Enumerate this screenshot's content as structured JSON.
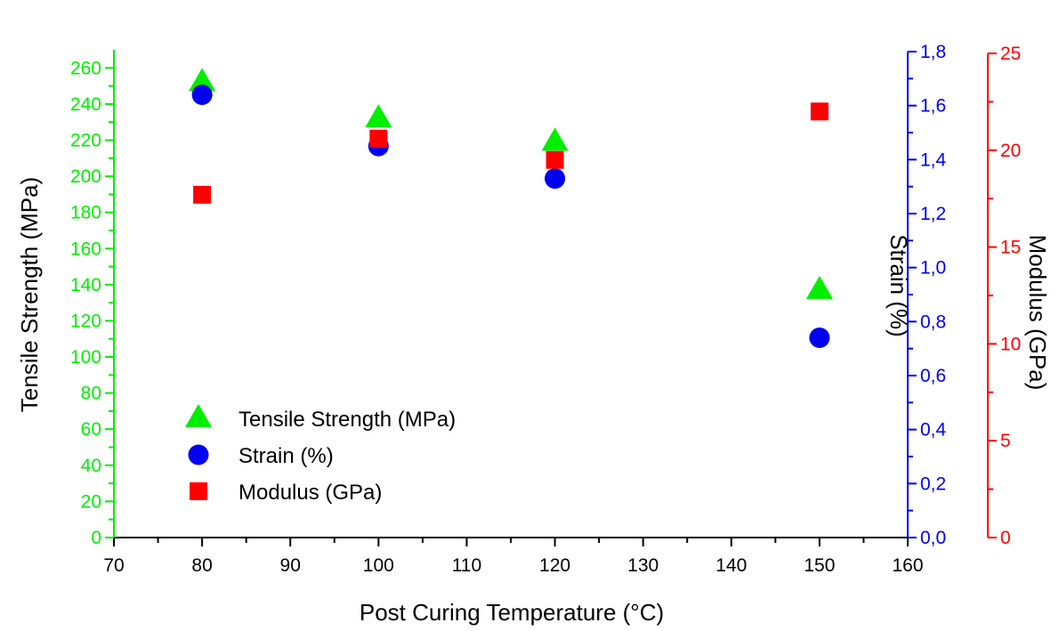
{
  "chart_data": {
    "type": "scatter",
    "xlabel": "Post Curing Temperature (°C)",
    "xlim": [
      70,
      160
    ],
    "xticks": [
      70,
      80,
      90,
      100,
      110,
      120,
      130,
      140,
      150,
      160
    ],
    "x": [
      80,
      100,
      120,
      150
    ],
    "axes": {
      "left": {
        "label": "Tensile Strength (MPa)",
        "ylim": [
          0,
          270
        ],
        "ticks": [
          0,
          20,
          40,
          60,
          80,
          100,
          120,
          140,
          160,
          180,
          200,
          220,
          240,
          260
        ],
        "tick_labels": [
          "0",
          "20",
          "40",
          "60",
          "80",
          "100",
          "120",
          "140",
          "160",
          "180",
          "200",
          "220",
          "240",
          "260"
        ],
        "color": "#00ee00"
      },
      "right1": {
        "label": "Strain (%)",
        "ylim": [
          0,
          1.8
        ],
        "ticks": [
          0,
          0.2,
          0.4,
          0.6,
          0.8,
          1.0,
          1.2,
          1.4,
          1.6,
          1.8
        ],
        "tick_labels": [
          "0,0",
          "0,2",
          "0,4",
          "0,6",
          "0,8",
          "1,0",
          "1,2",
          "1,4",
          "1,6",
          "1,8"
        ],
        "color": "#0000ee"
      },
      "right2": {
        "label": "Modulus (GPa)",
        "ylim": [
          0,
          25
        ],
        "ticks": [
          0,
          5,
          10,
          15,
          20,
          25
        ],
        "tick_labels": [
          "0",
          "5",
          "10",
          "15",
          "20",
          "25"
        ],
        "color": "#ff0000"
      }
    },
    "series": [
      {
        "name": "Tensile Strength (MPa)",
        "axis": "left",
        "marker": "triangle",
        "color": "#00ee00",
        "values": [
          252,
          232,
          219,
          137
        ]
      },
      {
        "name": "Strain (%)",
        "axis": "right1",
        "marker": "circle",
        "color": "#0000ee",
        "values": [
          1.64,
          1.45,
          1.33,
          0.74
        ]
      },
      {
        "name": "Modulus (GPa)",
        "axis": "right2",
        "marker": "square",
        "color": "#ff0000",
        "values": [
          17.7,
          20.6,
          19.5,
          22.0
        ]
      }
    ],
    "legend": {
      "placement": "bottom-left"
    },
    "grid": false
  }
}
